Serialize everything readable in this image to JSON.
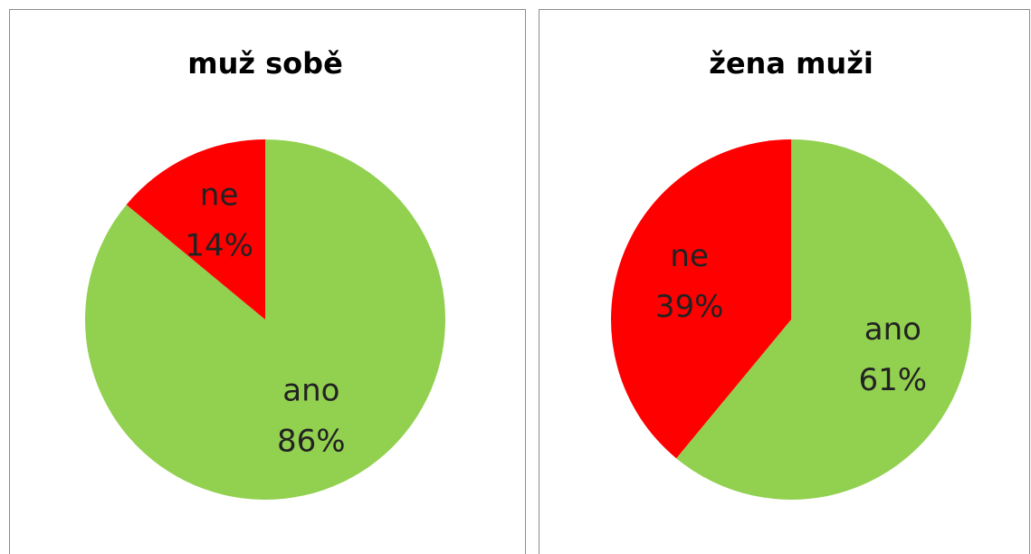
{
  "chart_data": [
    {
      "type": "pie",
      "title": "muž sobě",
      "categories": [
        "ano",
        "ne"
      ],
      "values": [
        86,
        14
      ],
      "value_labels": [
        "86%",
        "14%"
      ],
      "colors": [
        "#92d050",
        "#ff0000"
      ]
    },
    {
      "type": "pie",
      "title": "žena muži",
      "categories": [
        "ano",
        "ne"
      ],
      "values": [
        61,
        39
      ],
      "value_labels": [
        "61%",
        "39%"
      ],
      "colors": [
        "#92d050",
        "#ff0000"
      ]
    }
  ]
}
